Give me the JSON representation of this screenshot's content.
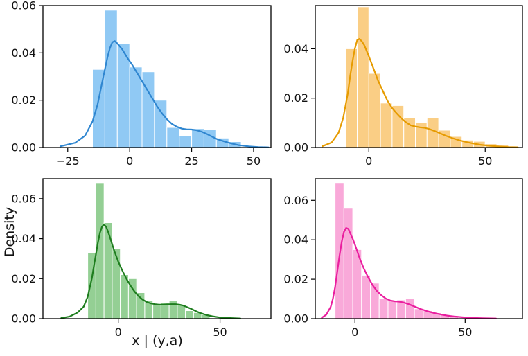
{
  "labels": {
    "ylabel": "Density",
    "xlabel": "x | (y,a)"
  },
  "chart_data": [
    {
      "type": "histogram+kde",
      "name": "top-left",
      "bar_color": "#90c9f4",
      "line_color": "#2f86d0",
      "xlim": [
        -35,
        57
      ],
      "ylim": [
        0,
        0.06
      ],
      "xticks": {
        "values": [
          -25,
          0,
          25,
          50
        ],
        "labels": [
          "−25",
          "0",
          "25",
          "50"
        ]
      },
      "yticks": {
        "values": [
          0,
          0.02,
          0.04,
          0.06
        ],
        "labels": [
          "0.00",
          "0.02",
          "0.04",
          "0.06"
        ]
      },
      "bins": {
        "start": -15,
        "width": 5,
        "heights": [
          0.033,
          0.058,
          0.044,
          0.034,
          0.032,
          0.02,
          0.0085,
          0.005,
          0.008,
          0.0075,
          0.004,
          0.0025
        ]
      },
      "kde": [
        [
          -28,
          0.0005
        ],
        [
          -22,
          0.002
        ],
        [
          -18,
          0.005
        ],
        [
          -15,
          0.011
        ],
        [
          -13,
          0.018
        ],
        [
          -11,
          0.028
        ],
        [
          -9,
          0.038
        ],
        [
          -8,
          0.042
        ],
        [
          -7,
          0.0445
        ],
        [
          -6,
          0.045
        ],
        [
          -5,
          0.044
        ],
        [
          -3,
          0.0415
        ],
        [
          -1,
          0.038
        ],
        [
          1,
          0.035
        ],
        [
          3,
          0.0315
        ],
        [
          5,
          0.028
        ],
        [
          7,
          0.0245
        ],
        [
          9,
          0.021
        ],
        [
          11,
          0.0175
        ],
        [
          13,
          0.0145
        ],
        [
          15,
          0.012
        ],
        [
          17,
          0.01
        ],
        [
          19,
          0.0088
        ],
        [
          21,
          0.008
        ],
        [
          23,
          0.0077
        ],
        [
          25,
          0.0076
        ],
        [
          27,
          0.0073
        ],
        [
          29,
          0.0067
        ],
        [
          31,
          0.0058
        ],
        [
          33,
          0.0047
        ],
        [
          35,
          0.0037
        ],
        [
          38,
          0.0026
        ],
        [
          41,
          0.0017
        ],
        [
          44,
          0.001
        ],
        [
          48,
          0.0005
        ],
        [
          52,
          0.0002
        ],
        [
          56,
          0.0001
        ]
      ]
    },
    {
      "type": "histogram+kde",
      "name": "top-right",
      "bar_color": "#face85",
      "line_color": "#e69b00",
      "xlim": [
        -23,
        66
      ],
      "ylim": [
        0,
        0.0575
      ],
      "xticks": {
        "values": [
          0,
          50
        ],
        "labels": [
          "0",
          "50"
        ]
      },
      "yticks": {
        "values": [
          0,
          0.02,
          0.04
        ],
        "labels": [
          "0.00",
          "0.02",
          "0.04"
        ]
      },
      "bins": {
        "start": -10,
        "width": 5,
        "heights": [
          0.04,
          0.057,
          0.03,
          0.018,
          0.017,
          0.012,
          0.01,
          0.012,
          0.007,
          0.0045,
          0.003,
          0.0025,
          0.0015,
          0.001
        ]
      },
      "kde": [
        [
          -20,
          0.0005
        ],
        [
          -16,
          0.002
        ],
        [
          -13,
          0.006
        ],
        [
          -11,
          0.012
        ],
        [
          -9,
          0.022
        ],
        [
          -8,
          0.029
        ],
        [
          -7,
          0.035
        ],
        [
          -6,
          0.04
        ],
        [
          -5,
          0.0435
        ],
        [
          -4,
          0.044
        ],
        [
          -3,
          0.043
        ],
        [
          -2,
          0.0415
        ],
        [
          0,
          0.037
        ],
        [
          2,
          0.032
        ],
        [
          4,
          0.027
        ],
        [
          6,
          0.023
        ],
        [
          8,
          0.019
        ],
        [
          10,
          0.016
        ],
        [
          12,
          0.0138
        ],
        [
          14,
          0.0118
        ],
        [
          16,
          0.0102
        ],
        [
          18,
          0.009
        ],
        [
          20,
          0.0085
        ],
        [
          22,
          0.0082
        ],
        [
          24,
          0.008
        ],
        [
          26,
          0.0075
        ],
        [
          28,
          0.0068
        ],
        [
          30,
          0.006
        ],
        [
          33,
          0.0048
        ],
        [
          36,
          0.0038
        ],
        [
          39,
          0.0029
        ],
        [
          42,
          0.0022
        ],
        [
          45,
          0.0016
        ],
        [
          48,
          0.0011
        ],
        [
          52,
          0.0007
        ],
        [
          56,
          0.0004
        ],
        [
          60,
          0.0002
        ],
        [
          64,
          0.0001
        ]
      ]
    },
    {
      "type": "histogram+kde",
      "name": "bottom-left",
      "bar_color": "#94cf94",
      "line_color": "#1e7d1e",
      "xlim": [
        -37,
        75
      ],
      "ylim": [
        0,
        0.07
      ],
      "xticks": {
        "values": [
          0,
          50
        ],
        "labels": [
          "0",
          "50"
        ]
      },
      "yticks": {
        "values": [
          0,
          0.02,
          0.04,
          0.06
        ],
        "labels": [
          "0.00",
          "0.02",
          "0.04",
          "0.06"
        ]
      },
      "bins": {
        "start": -15,
        "width": 4,
        "heights": [
          0.033,
          0.068,
          0.048,
          0.035,
          0.022,
          0.02,
          0.013,
          0.009,
          0.007,
          0.008,
          0.009,
          0.007,
          0.004,
          0.003,
          0.002
        ]
      },
      "kde": [
        [
          -28,
          0.0003
        ],
        [
          -24,
          0.001
        ],
        [
          -20,
          0.003
        ],
        [
          -17,
          0.006
        ],
        [
          -15,
          0.011
        ],
        [
          -13,
          0.02
        ],
        [
          -12,
          0.026
        ],
        [
          -11,
          0.032
        ],
        [
          -10,
          0.038
        ],
        [
          -9,
          0.043
        ],
        [
          -8,
          0.046
        ],
        [
          -7,
          0.047
        ],
        [
          -6,
          0.046
        ],
        [
          -5,
          0.0435
        ],
        [
          -4,
          0.0405
        ],
        [
          -2,
          0.034
        ],
        [
          0,
          0.0285
        ],
        [
          2,
          0.024
        ],
        [
          4,
          0.02
        ],
        [
          6,
          0.0165
        ],
        [
          8,
          0.0135
        ],
        [
          10,
          0.0112
        ],
        [
          12,
          0.0095
        ],
        [
          14,
          0.0083
        ],
        [
          16,
          0.0076
        ],
        [
          18,
          0.0072
        ],
        [
          20,
          0.007
        ],
        [
          22,
          0.007
        ],
        [
          24,
          0.0071
        ],
        [
          26,
          0.0072
        ],
        [
          28,
          0.0072
        ],
        [
          30,
          0.007
        ],
        [
          32,
          0.0065
        ],
        [
          34,
          0.0057
        ],
        [
          36,
          0.0048
        ],
        [
          38,
          0.0038
        ],
        [
          40,
          0.0029
        ],
        [
          43,
          0.0019
        ],
        [
          46,
          0.0012
        ],
        [
          50,
          0.0006
        ],
        [
          55,
          0.0003
        ],
        [
          60,
          0.0001
        ]
      ]
    },
    {
      "type": "histogram+kde",
      "name": "bottom-right",
      "bar_color": "#f9a9d9",
      "line_color": "#ea1f9f",
      "xlim": [
        -18,
        76
      ],
      "ylim": [
        0,
        0.071
      ],
      "xticks": {
        "values": [
          0,
          50
        ],
        "labels": [
          "0",
          "50"
        ]
      },
      "yticks": {
        "values": [
          0,
          0.02,
          0.04,
          0.06
        ],
        "labels": [
          "0.00",
          "0.02",
          "0.04",
          "0.06"
        ]
      },
      "bins": {
        "start": -9,
        "width": 4,
        "heights": [
          0.069,
          0.056,
          0.035,
          0.022,
          0.018,
          0.01,
          0.009,
          0.0095,
          0.01,
          0.005,
          0.004,
          0.003,
          0.002,
          0.0015
        ]
      },
      "kde": [
        [
          -15,
          0.0005
        ],
        [
          -13,
          0.002
        ],
        [
          -11,
          0.006
        ],
        [
          -10,
          0.01
        ],
        [
          -9,
          0.016
        ],
        [
          -8,
          0.024
        ],
        [
          -7,
          0.032
        ],
        [
          -6,
          0.039
        ],
        [
          -5,
          0.044
        ],
        [
          -4,
          0.046
        ],
        [
          -3,
          0.0455
        ],
        [
          -2,
          0.043
        ],
        [
          -1,
          0.0405
        ],
        [
          0,
          0.0375
        ],
        [
          2,
          0.031
        ],
        [
          4,
          0.0255
        ],
        [
          6,
          0.021
        ],
        [
          8,
          0.017
        ],
        [
          10,
          0.014
        ],
        [
          12,
          0.0118
        ],
        [
          14,
          0.0102
        ],
        [
          16,
          0.0092
        ],
        [
          18,
          0.0088
        ],
        [
          20,
          0.0086
        ],
        [
          22,
          0.0082
        ],
        [
          24,
          0.0075
        ],
        [
          26,
          0.0066
        ],
        [
          28,
          0.0057
        ],
        [
          30,
          0.0048
        ],
        [
          33,
          0.0037
        ],
        [
          36,
          0.0028
        ],
        [
          39,
          0.0021
        ],
        [
          42,
          0.0015
        ],
        [
          45,
          0.0011
        ],
        [
          49,
          0.0007
        ],
        [
          53,
          0.0004
        ],
        [
          58,
          0.0002
        ],
        [
          64,
          0.0001
        ]
      ]
    }
  ]
}
